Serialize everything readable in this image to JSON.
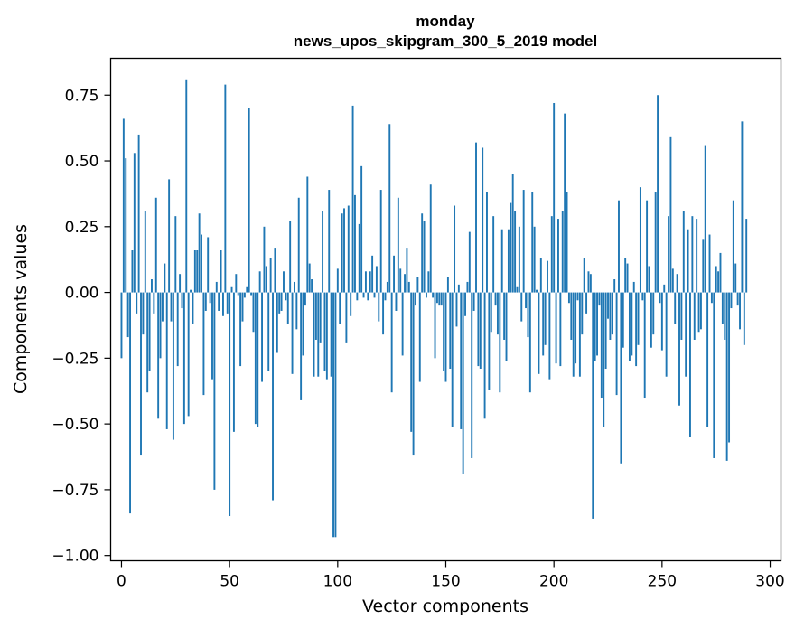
{
  "chart_data": {
    "type": "bar",
    "title_line1": "monday",
    "title_line2": "news_upos_skipgram_300_5_2019 model",
    "xlabel": "Vector components",
    "ylabel": "Components values",
    "xlim": [
      -5,
      305
    ],
    "ylim": [
      -1.02,
      0.89
    ],
    "grid": false,
    "bar_color": "#1f77b4",
    "x_ticks": [
      {
        "value": 0,
        "label": "0"
      },
      {
        "value": 50,
        "label": "50"
      },
      {
        "value": 100,
        "label": "100"
      },
      {
        "value": 150,
        "label": "150"
      },
      {
        "value": 200,
        "label": "200"
      },
      {
        "value": 250,
        "label": "250"
      },
      {
        "value": 300,
        "label": "300"
      }
    ],
    "y_ticks": [
      {
        "value": 0.75,
        "label": "0.75"
      },
      {
        "value": 0.5,
        "label": "0.50"
      },
      {
        "value": 0.25,
        "label": "0.25"
      },
      {
        "value": 0.0,
        "label": "0.00"
      },
      {
        "value": -0.25,
        "label": "−0.25"
      },
      {
        "value": -0.5,
        "label": "−0.50"
      },
      {
        "value": -0.75,
        "label": "−0.75"
      },
      {
        "value": -1.0,
        "label": "−1.00"
      }
    ],
    "values": [
      -0.25,
      0.66,
      0.51,
      -0.17,
      -0.84,
      0.16,
      0.53,
      -0.08,
      0.6,
      -0.62,
      -0.16,
      0.31,
      -0.38,
      -0.3,
      0.05,
      -0.08,
      0.36,
      -0.48,
      -0.25,
      -0.11,
      0.11,
      -0.52,
      0.43,
      -0.11,
      -0.56,
      0.29,
      -0.28,
      0.07,
      -0.06,
      -0.5,
      0.81,
      -0.47,
      0.01,
      -0.12,
      0.16,
      0.16,
      0.3,
      0.22,
      -0.39,
      -0.07,
      0.21,
      -0.04,
      -0.33,
      -0.75,
      0.04,
      -0.07,
      0.16,
      -0.09,
      0.79,
      -0.08,
      -0.85,
      0.02,
      -0.53,
      0.07,
      -0.01,
      -0.28,
      -0.11,
      -0.02,
      0.02,
      0.7,
      -0.01,
      -0.15,
      -0.5,
      -0.51,
      0.08,
      -0.34,
      0.25,
      0.1,
      -0.3,
      0.13,
      -0.79,
      0.17,
      -0.23,
      -0.08,
      -0.07,
      0.08,
      -0.03,
      -0.12,
      0.27,
      -0.31,
      0.04,
      -0.14,
      0.36,
      -0.41,
      -0.24,
      -0.05,
      0.44,
      0.11,
      0.05,
      -0.32,
      -0.18,
      -0.32,
      -0.19,
      0.31,
      -0.3,
      -0.33,
      0.39,
      -0.32,
      -0.93,
      -0.93,
      0.09,
      -0.12,
      0.3,
      0.32,
      -0.19,
      0.33,
      -0.09,
      0.71,
      0.37,
      -0.03,
      0.26,
      0.48,
      -0.02,
      0.08,
      -0.03,
      0.08,
      0.14,
      -0.02,
      0.1,
      -0.11,
      0.39,
      -0.16,
      -0.03,
      0.04,
      0.64,
      -0.38,
      0.14,
      -0.07,
      0.36,
      0.09,
      -0.24,
      0.07,
      0.17,
      0.04,
      -0.53,
      -0.62,
      -0.05,
      0.06,
      -0.34,
      0.3,
      0.27,
      -0.02,
      0.08,
      0.41,
      -0.02,
      -0.25,
      -0.04,
      -0.05,
      -0.05,
      -0.3,
      -0.34,
      0.06,
      -0.29,
      -0.51,
      0.33,
      -0.13,
      0.03,
      -0.52,
      -0.69,
      -0.09,
      0.04,
      0.23,
      -0.63,
      -0.07,
      0.57,
      -0.28,
      -0.29,
      0.55,
      -0.48,
      0.38,
      -0.37,
      -0.15,
      0.29,
      -0.05,
      -0.16,
      -0.38,
      0.24,
      -0.18,
      -0.26,
      0.24,
      0.34,
      0.45,
      0.31,
      0.02,
      0.25,
      -0.11,
      0.39,
      -0.06,
      -0.17,
      -0.38,
      0.38,
      0.25,
      0.01,
      -0.31,
      0.13,
      -0.24,
      -0.2,
      0.12,
      -0.33,
      0.29,
      0.72,
      -0.27,
      0.28,
      -0.28,
      0.31,
      0.68,
      0.38,
      -0.04,
      -0.18,
      -0.32,
      -0.27,
      -0.03,
      -0.32,
      -0.16,
      0.13,
      -0.08,
      0.08,
      0.07,
      -0.86,
      -0.26,
      -0.24,
      -0.05,
      -0.4,
      -0.51,
      -0.29,
      -0.1,
      -0.18,
      -0.16,
      0.05,
      -0.39,
      0.35,
      -0.65,
      -0.21,
      0.13,
      0.11,
      -0.26,
      -0.24,
      0.04,
      -0.28,
      -0.2,
      0.4,
      -0.03,
      -0.4,
      0.35,
      0.1,
      -0.21,
      -0.16,
      0.38,
      0.75,
      -0.04,
      -0.22,
      0.03,
      -0.32,
      0.29,
      0.59,
      0.09,
      -0.12,
      0.07,
      -0.43,
      -0.18,
      0.31,
      -0.32,
      0.24,
      -0.55,
      0.29,
      -0.18,
      0.28,
      -0.15,
      -0.14,
      0.2,
      0.56,
      -0.51,
      0.22,
      -0.04,
      -0.63,
      0.1,
      0.08,
      0.15,
      -0.12,
      -0.18,
      -0.64,
      -0.57,
      -0.06,
      0.35,
      0.11,
      -0.05,
      -0.14,
      0.65,
      -0.2,
      0.28
    ]
  }
}
